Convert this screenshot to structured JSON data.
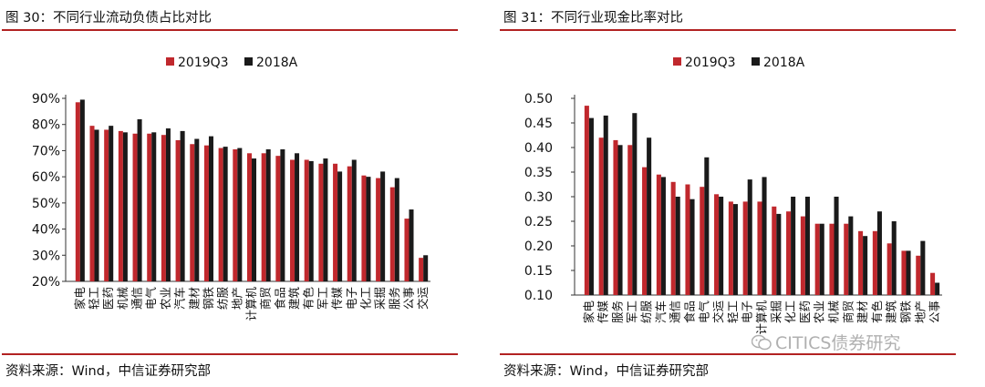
{
  "figures": [
    {
      "title": "图 30：不同行业流动负债占比对比",
      "source": "资料来源：Wind，中信证券研究部"
    },
    {
      "title": "图 31：不同行业现金比率对比",
      "source": "资料来源：Wind，中信证券研究部"
    }
  ],
  "watermark": "CITICS债券研究",
  "colors": {
    "series_2019": "#c0282d",
    "series_2018": "#1a1a1a",
    "rule": "#b22222"
  },
  "chart_data": [
    {
      "type": "bar",
      "categories": [
        "家电",
        "轻工",
        "医药",
        "机械",
        "通信",
        "电气",
        "农业",
        "汽车",
        "建材",
        "钢铁",
        "纺服",
        "地产",
        "计算机",
        "商贸",
        "食品",
        "建筑",
        "有色",
        "军工",
        "传媒",
        "电子",
        "化工",
        "采掘",
        "服务",
        "公事",
        "交运"
      ],
      "series": [
        {
          "name": "2019Q3",
          "values": [
            88.5,
            79.5,
            78.0,
            77.5,
            76.5,
            76.5,
            76.0,
            74.0,
            72.5,
            72.0,
            71.0,
            70.5,
            69.0,
            69.0,
            68.0,
            66.5,
            66.5,
            65.0,
            65.0,
            64.0,
            60.5,
            59.5,
            56.0,
            44.0,
            29.0
          ]
        },
        {
          "name": "2018A",
          "values": [
            89.5,
            78.0,
            79.5,
            77.0,
            82.0,
            77.0,
            78.5,
            77.5,
            74.5,
            75.5,
            71.5,
            71.0,
            67.0,
            70.5,
            70.5,
            69.0,
            66.0,
            67.0,
            62.0,
            66.5,
            60.0,
            62.0,
            59.5,
            47.5,
            30.0
          ]
        }
      ],
      "ylim": [
        20,
        90
      ],
      "yticks": [
        "20%",
        "30%",
        "40%",
        "50%",
        "60%",
        "70%",
        "80%",
        "90%"
      ],
      "legend": "top-center"
    },
    {
      "type": "bar",
      "categories": [
        "家电",
        "传媒",
        "服务",
        "军工",
        "纺服",
        "汽车",
        "通信",
        "食品",
        "电气",
        "交运",
        "轻工",
        "电子",
        "计算机",
        "采掘",
        "化工",
        "医药",
        "农业",
        "机械",
        "商贸",
        "建材",
        "有色",
        "建筑",
        "钢铁",
        "地产",
        "公事"
      ],
      "series": [
        {
          "name": "2019Q3",
          "values": [
            0.485,
            0.42,
            0.415,
            0.405,
            0.36,
            0.345,
            0.33,
            0.325,
            0.32,
            0.305,
            0.29,
            0.29,
            0.29,
            0.28,
            0.27,
            0.26,
            0.245,
            0.245,
            0.245,
            0.23,
            0.23,
            0.205,
            0.19,
            0.18,
            0.145
          ]
        },
        {
          "name": "2018A",
          "values": [
            0.46,
            0.465,
            0.405,
            0.47,
            0.42,
            0.34,
            0.3,
            0.295,
            0.38,
            0.3,
            0.285,
            0.335,
            0.34,
            0.265,
            0.3,
            0.3,
            0.245,
            0.3,
            0.26,
            0.22,
            0.27,
            0.25,
            0.19,
            0.21,
            0.125
          ]
        }
      ],
      "ylim": [
        0.1,
        0.5
      ],
      "yticks": [
        "0.10",
        "0.15",
        "0.20",
        "0.25",
        "0.30",
        "0.35",
        "0.40",
        "0.45",
        "0.50"
      ],
      "legend": "top-center"
    }
  ]
}
